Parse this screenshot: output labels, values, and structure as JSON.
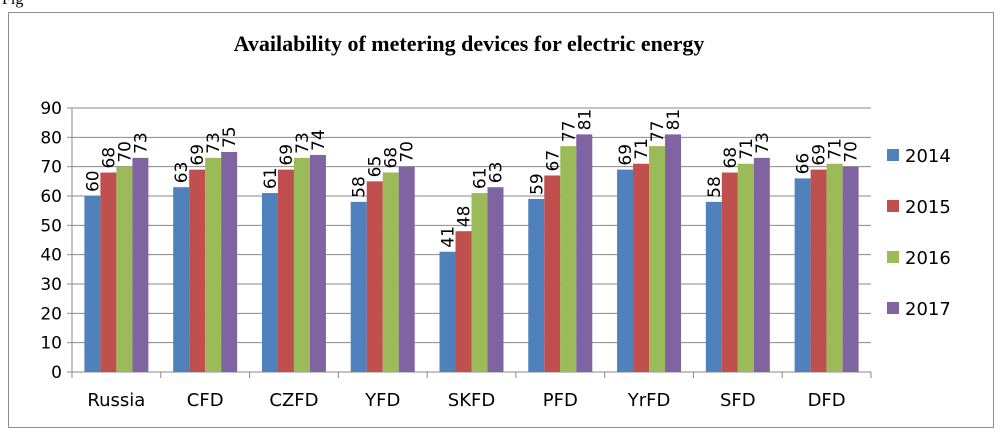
{
  "figure_label": "Fig",
  "chart_data": {
    "type": "bar",
    "title": "Availability of metering devices for electric energy",
    "xlabel": "",
    "ylabel": "",
    "ylim": [
      0,
      90
    ],
    "yticks": [
      0,
      10,
      20,
      30,
      40,
      50,
      60,
      70,
      80,
      90
    ],
    "grid": true,
    "legend_position": "right",
    "categories": [
      "Russia",
      "CFD",
      "CZFD",
      "YFD",
      "SKFD",
      "PFD",
      "YrFD",
      "SFD",
      "DFD"
    ],
    "series": [
      {
        "name": "2014",
        "color": "#4f81bd",
        "values": [
          60,
          63,
          61,
          58,
          41,
          59,
          69,
          58,
          66
        ]
      },
      {
        "name": "2015",
        "color": "#c0504d",
        "values": [
          68,
          69,
          69,
          65,
          48,
          67,
          71,
          68,
          69
        ]
      },
      {
        "name": "2016",
        "color": "#9bbb59",
        "values": [
          70,
          73,
          73,
          68,
          61,
          77,
          77,
          71,
          71
        ]
      },
      {
        "name": "2017",
        "color": "#8064a2",
        "values": [
          73,
          75,
          74,
          70,
          63,
          81,
          81,
          73,
          70
        ]
      }
    ]
  }
}
